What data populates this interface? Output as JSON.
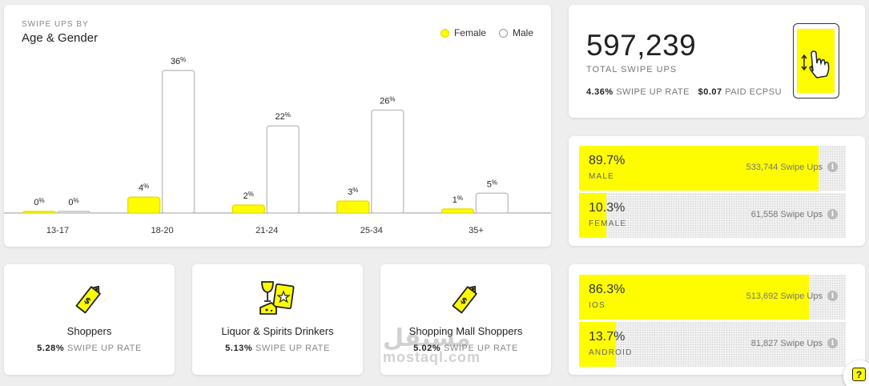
{
  "chart": {
    "kicker": "SWIPE UPS BY",
    "title": "Age & Gender",
    "legend": {
      "female": "Female",
      "male": "Male"
    }
  },
  "chart_data": {
    "type": "bar",
    "title": "Age & Gender",
    "categories": [
      "13-17",
      "18-20",
      "21-24",
      "25-34",
      "35+"
    ],
    "series": [
      {
        "name": "Female",
        "values": [
          0,
          4,
          2,
          3,
          1
        ],
        "color": "#fffc00"
      },
      {
        "name": "Male",
        "values": [
          0,
          36,
          22,
          26,
          5
        ],
        "color": "#ffffff"
      }
    ],
    "value_suffix": "%",
    "ylim": [
      0,
      36
    ]
  },
  "summary": {
    "total": "597,239",
    "total_label": "TOTAL SWIPE UPS",
    "swipe_rate_value": "4.36%",
    "swipe_rate_label": "SWIPE UP RATE",
    "ecpsu_value": "$0.07",
    "ecpsu_label": "PAID ECPSU"
  },
  "gender": [
    {
      "pct": "89.7%",
      "label": "MALE",
      "count": "533,744 Swipe Ups",
      "fill": 0.897
    },
    {
      "pct": "10.3%",
      "label": "FEMALE",
      "count": "61,558 Swipe Ups",
      "fill": 0.103
    }
  ],
  "os": [
    {
      "pct": "86.3%",
      "label": "IOS",
      "count": "513,692 Swipe Ups",
      "fill": 0.863
    },
    {
      "pct": "13.7%",
      "label": "ANDROID",
      "count": "81,827 Swipe Ups",
      "fill": 0.137
    }
  ],
  "audiences": [
    {
      "name": "Shoppers",
      "rate": "5.28%",
      "rate_label": "SWIPE UP RATE",
      "icon": "price-tag-icon"
    },
    {
      "name": "Liquor & Spirits Drinkers",
      "rate": "5.13%",
      "rate_label": "SWIPE UP RATE",
      "icon": "wine-cheese-icon"
    },
    {
      "name": "Shopping Mall Shoppers",
      "rate": "5.02%",
      "rate_label": "SWIPE UP RATE",
      "icon": "price-tag-icon"
    }
  ],
  "info_glyph": "i",
  "help_glyph": "?",
  "watermark": {
    "arabic": "مستقل",
    "latin": "mostaql.com"
  },
  "colors": {
    "accent": "#fffc00",
    "text": "#222222",
    "muted": "#888888"
  }
}
